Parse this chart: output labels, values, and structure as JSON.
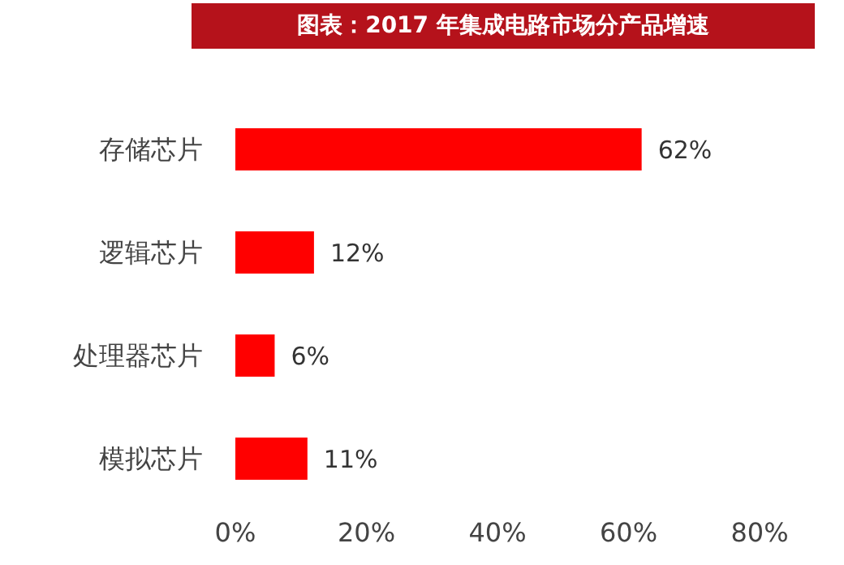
{
  "chart_data": {
    "type": "bar",
    "orientation": "horizontal",
    "title": "图表：2017 年集成电路市场分产品增速",
    "categories": [
      "存储芯片",
      "逻辑芯片",
      "处理器芯片",
      "模拟芯片"
    ],
    "values": [
      62,
      12,
      6,
      11
    ],
    "value_labels": [
      "62%",
      "12%",
      "6%",
      "11%"
    ],
    "color": "#ff0000",
    "xlim": [
      0,
      80
    ],
    "xticks": [
      {
        "value": 0,
        "label": "0%"
      },
      {
        "value": 20,
        "label": "20%"
      },
      {
        "value": 40,
        "label": "40%"
      },
      {
        "value": 60,
        "label": "60%"
      },
      {
        "value": 80,
        "label": "80%"
      }
    ],
    "grid": false,
    "legend": false
  }
}
